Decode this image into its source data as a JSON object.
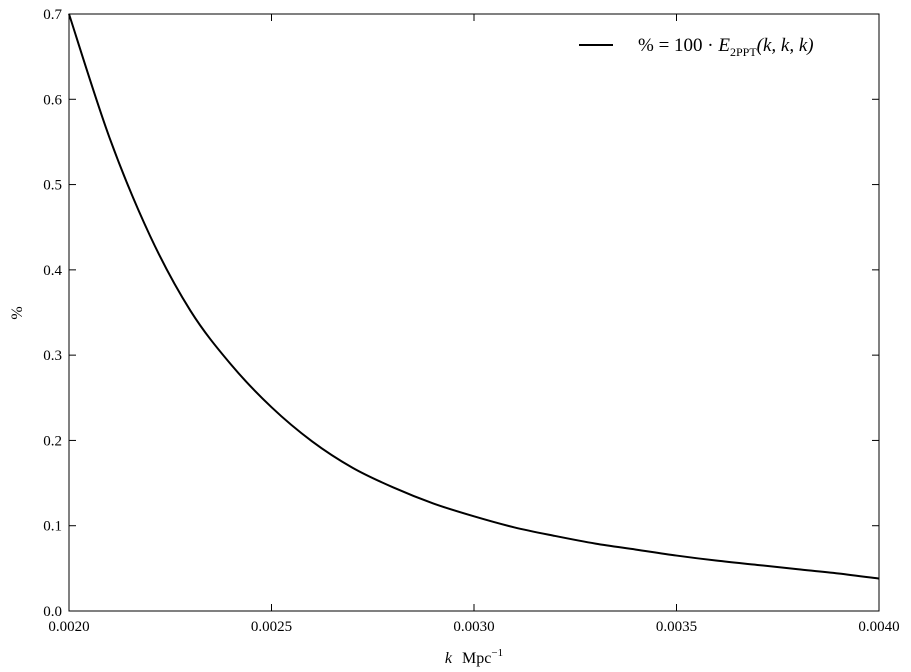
{
  "chart_data": {
    "type": "line",
    "title": "",
    "xlabel": {
      "var": "k",
      "unit": "Mpc",
      "exp": "−1"
    },
    "ylabel": "%",
    "xlim": [
      0.002,
      0.004
    ],
    "ylim": [
      0.0,
      0.7
    ],
    "xticks": [
      "0.0020",
      "0.0025",
      "0.0030",
      "0.0035",
      "0.0040"
    ],
    "yticks": [
      "0.0",
      "0.1",
      "0.2",
      "0.3",
      "0.4",
      "0.5",
      "0.6",
      "0.7"
    ],
    "grid": false,
    "legend_position": "top-right",
    "legend": {
      "lhs": "% = 100 · ",
      "E": "E",
      "sub": "2PPT",
      "args": "(k, k, k)"
    },
    "series": [
      {
        "color": "#000000",
        "x": [
          0.002,
          0.0021,
          0.0022,
          0.0023,
          0.0024,
          0.0025,
          0.0026,
          0.0027,
          0.0028,
          0.0029,
          0.003,
          0.0031,
          0.0032,
          0.0033,
          0.0034,
          0.0035,
          0.0036,
          0.0037,
          0.0038,
          0.0039,
          0.004
        ],
        "y": [
          0.7,
          0.555,
          0.44,
          0.352,
          0.289,
          0.239,
          0.199,
          0.168,
          0.145,
          0.126,
          0.111,
          0.098,
          0.088,
          0.079,
          0.072,
          0.065,
          0.059,
          0.054,
          0.049,
          0.044,
          0.038
        ]
      }
    ]
  }
}
